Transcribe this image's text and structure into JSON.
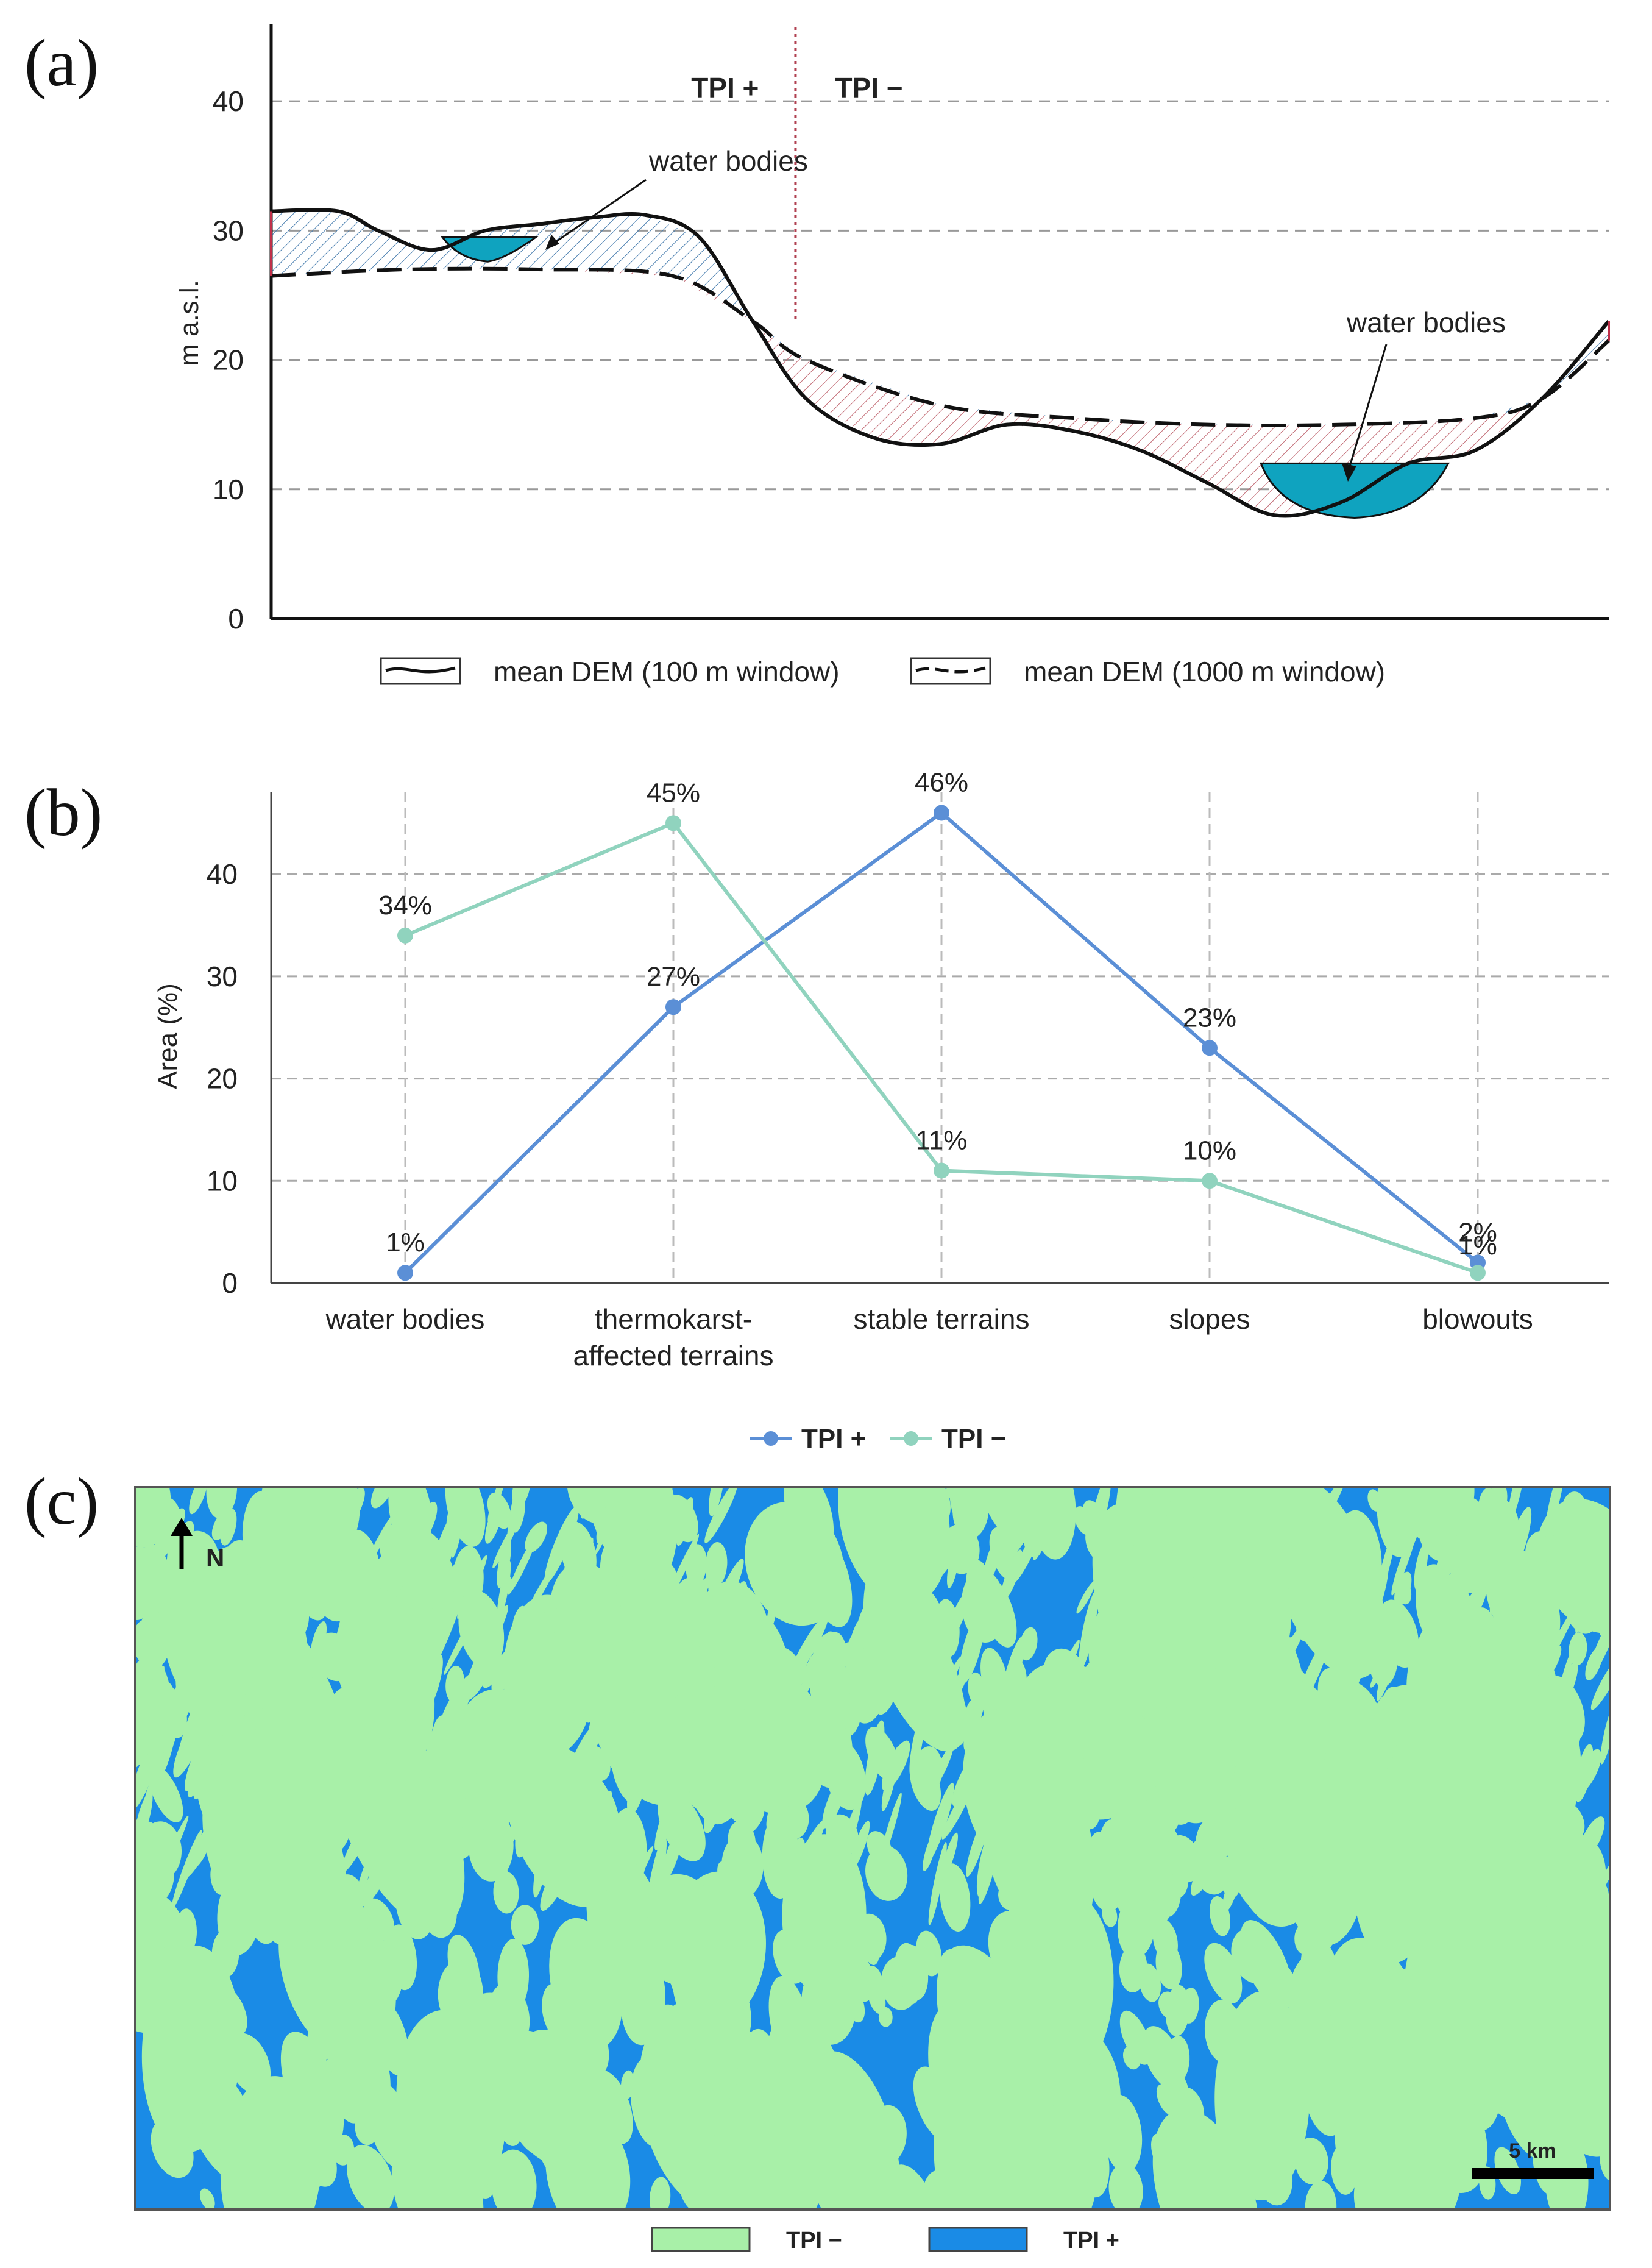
{
  "panels": {
    "a": "(a)",
    "b": "(b)",
    "c": "(c)"
  },
  "colors": {
    "tpi_plus_label": "#2b5ea8",
    "tpi_minus_label": "#c0304a",
    "water": "#0fa3bf",
    "series_tpi_plus": "#5b8fd6",
    "series_tpi_minus": "#90d3be",
    "map_tpi_minus": "#a8f0a8",
    "map_tpi_plus": "#1a8be6"
  },
  "chart_data": [
    {
      "type": "area",
      "panel": "a",
      "ylabel": "m a.s.l.",
      "ylim": [
        0,
        45
      ],
      "yticks": [
        0,
        10,
        20,
        30,
        40
      ],
      "region_labels": {
        "left": "TPI +",
        "right": "TPI −"
      },
      "annotations": [
        "water bodies",
        "water bodies"
      ],
      "legend": [
        "mean DEM (100 m window)",
        "mean DEM (1000 m window)"
      ],
      "series": [
        {
          "name": "mean DEM (100 m window)",
          "style": "solid",
          "x": [
            0,
            5,
            8,
            12,
            16,
            20,
            24,
            28,
            32,
            36,
            40,
            45,
            50,
            55,
            60,
            65,
            70,
            75,
            80,
            85,
            90,
            95,
            100
          ],
          "y": [
            31.5,
            31.5,
            30,
            28.5,
            30,
            30.5,
            31,
            31.2,
            29.5,
            23,
            17,
            14,
            13.5,
            15,
            14.5,
            13,
            10.5,
            8,
            9,
            12,
            13,
            17,
            23
          ]
        },
        {
          "name": "mean DEM (1000 m window)",
          "style": "dashed",
          "x": [
            0,
            10,
            20,
            30,
            36,
            40,
            50,
            60,
            70,
            80,
            90,
            95,
            100
          ],
          "y": [
            26.5,
            27,
            27,
            26.5,
            23,
            20,
            16.5,
            15.5,
            15,
            15,
            15.5,
            17,
            21.5
          ]
        }
      ],
      "water_levels": [
        29.5,
        12
      ]
    },
    {
      "type": "line",
      "panel": "b",
      "ylabel": "Area (%)",
      "ylim": [
        0,
        48
      ],
      "yticks": [
        0,
        10,
        20,
        30,
        40
      ],
      "categories": [
        "water bodies",
        "thermokarst-affected terrains",
        "stable terrains",
        "slopes",
        "blowouts"
      ],
      "category_lines": [
        [
          "water bodies"
        ],
        [
          "thermokarst-",
          "affected terrains"
        ],
        [
          "stable terrains"
        ],
        [
          "slopes"
        ],
        [
          "blowouts"
        ]
      ],
      "series": [
        {
          "name": "TPI +",
          "values": [
            1,
            27,
            46,
            23,
            2
          ],
          "labels": [
            "1%",
            "27%",
            "46%",
            "23%",
            "2%"
          ]
        },
        {
          "name": "TPI −",
          "values": [
            34,
            45,
            11,
            10,
            1
          ],
          "labels": [
            "34%",
            "45%",
            "11%",
            "10%",
            "1%"
          ]
        }
      ],
      "legend": [
        "TPI +",
        "TPI −"
      ]
    },
    {
      "type": "heatmap",
      "panel": "c",
      "north": "N",
      "scale_label": "5 km",
      "legend": [
        "TPI −",
        "TPI +"
      ]
    }
  ]
}
